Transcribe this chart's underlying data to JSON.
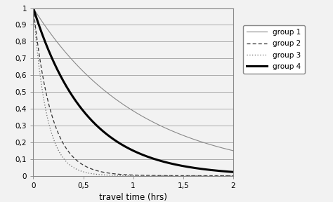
{
  "title": "",
  "xlabel": "travel time (hrs)",
  "ylabel": "",
  "xlim": [
    0,
    2
  ],
  "ylim": [
    0,
    1
  ],
  "xticks": [
    0,
    0.5,
    1.0,
    1.5,
    2.0
  ],
  "yticks": [
    0,
    0.1,
    0.2,
    0.3,
    0.4,
    0.5,
    0.6,
    0.7,
    0.8,
    0.9,
    1.0
  ],
  "xtick_labels": [
    "0",
    "0,5",
    "1",
    "1,5",
    "2"
  ],
  "ytick_labels": [
    "0",
    "0,1",
    "0,2",
    "0,3",
    "0,4",
    "0,5",
    "0,6",
    "0,7",
    "0,8",
    "0,9",
    "1"
  ],
  "groups": [
    {
      "label": "group 1",
      "lambda": 0.95,
      "color": "#888888",
      "linestyle": "solid",
      "linewidth": 0.8
    },
    {
      "label": "group 2",
      "lambda": 5.5,
      "color": "#333333",
      "linestyle": "dashed",
      "linewidth": 0.9
    },
    {
      "label": "group 3",
      "lambda": 7.5,
      "color": "#666666",
      "linestyle": "dotted",
      "linewidth": 0.9
    },
    {
      "label": "group 4",
      "lambda": 1.9,
      "color": "#000000",
      "linestyle": "solid",
      "linewidth": 2.2
    }
  ],
  "background_color": "#f2f2f2",
  "plot_bg_color": "#f2f2f2",
  "grid_color": "#aaaaaa",
  "legend_fontsize": 7.5,
  "axis_fontsize": 8.5,
  "tick_fontsize": 7.5,
  "figsize": [
    4.74,
    2.88
  ],
  "dpi": 100
}
